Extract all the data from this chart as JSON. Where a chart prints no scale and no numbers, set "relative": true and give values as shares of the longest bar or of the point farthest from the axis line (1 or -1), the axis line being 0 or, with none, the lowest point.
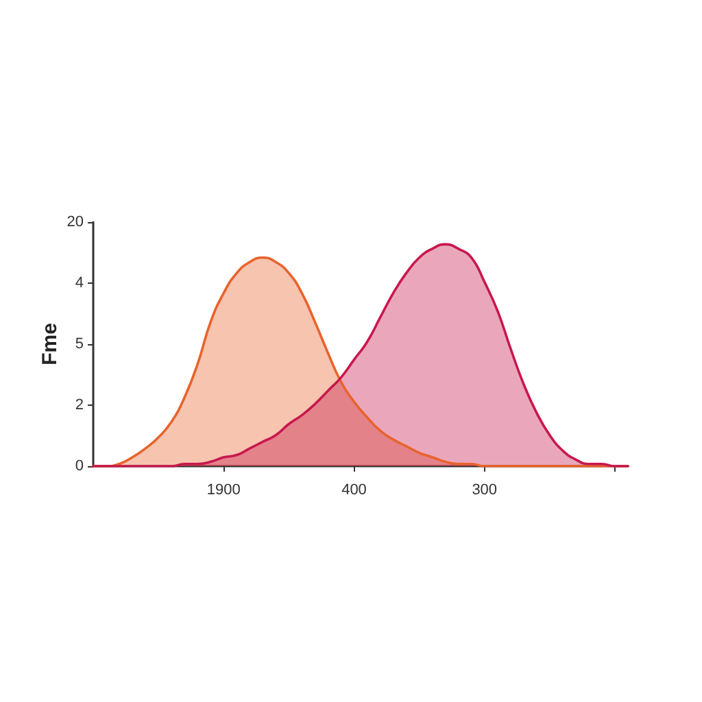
{
  "chart_data": {
    "type": "area",
    "ylabel": "Fme",
    "relative": true,
    "categories": [
      null,
      null,
      null,
      null,
      null,
      null,
      null,
      null,
      null,
      null,
      "1900",
      null,
      null,
      null,
      null,
      null,
      null,
      null,
      null,
      null,
      "400",
      null,
      null,
      null,
      null,
      null,
      null,
      null,
      null,
      null,
      "300",
      null,
      null,
      null,
      null,
      null,
      null,
      null,
      null,
      null,
      null,
      null
    ],
    "annotations": [
      "20",
      "4",
      "5",
      "2",
      "0"
    ],
    "series": [
      {
        "color": "#e8632c",
        "values": [
          0,
          0,
          0.01,
          0.04,
          0.08,
          0.13,
          0.2,
          0.31,
          0.46,
          0.65,
          0.78,
          0.87,
          0.92,
          0.94,
          0.92,
          0.87,
          0.78,
          0.65,
          0.51,
          0.38,
          0.29,
          0.22,
          0.16,
          0.12,
          0.09,
          0.06,
          0.04,
          0.02,
          0.01,
          0.01,
          0,
          0,
          0,
          0,
          0,
          0,
          0,
          0,
          0,
          0,
          0,
          0
        ]
      },
      {
        "color": "#c8184e",
        "values": [
          0,
          0,
          0,
          0,
          0,
          0,
          0,
          0.01,
          0.01,
          0.02,
          0.04,
          0.05,
          0.08,
          0.11,
          0.14,
          0.19,
          0.23,
          0.28,
          0.34,
          0.4,
          0.48,
          0.56,
          0.67,
          0.78,
          0.87,
          0.94,
          0.98,
          1,
          0.98,
          0.94,
          0.83,
          0.7,
          0.53,
          0.37,
          0.24,
          0.14,
          0.07,
          0.03,
          0.01,
          0.01,
          0,
          0
        ]
      }
    ]
  }
}
